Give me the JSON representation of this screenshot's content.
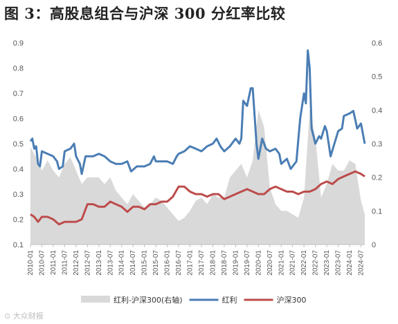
{
  "title": "图 3：高股息组合与沪深 300 分红率比较",
  "watermark": "⊙ 大众财报",
  "chart_data": {
    "type": "line",
    "x_tick_labels": [
      "2010-01",
      "2010-07",
      "2011-01",
      "2011-07",
      "2012-01",
      "2012-07",
      "2013-01",
      "2013-07",
      "2014-01",
      "2014-07",
      "2015-01",
      "2015-07",
      "2016-01",
      "2016-07",
      "2017-01",
      "2017-07",
      "2018-01",
      "2018-07",
      "2019-01",
      "2019-07",
      "2020-01",
      "2020-07",
      "2021-01",
      "2021-07",
      "2022-01",
      "2022-07",
      "2023-01",
      "2023-07",
      "2024-01",
      "2024-07"
    ],
    "x_range": [
      "2010-01",
      "2024-09"
    ],
    "y_left": {
      "min": 0.1,
      "max": 0.9,
      "ticks": [
        0.1,
        0.2,
        0.3,
        0.4,
        0.5,
        0.6,
        0.7,
        0.8,
        0.9
      ]
    },
    "y_right": {
      "min": 0,
      "max": 0.6,
      "ticks": [
        0,
        0.1,
        0.2,
        0.3,
        0.4,
        0.5,
        0.6
      ]
    },
    "grid": false,
    "legend_position": "bottom",
    "series": [
      {
        "name": "红利-沪深300(右轴)",
        "type": "area",
        "axis": "right",
        "color": "#d9d9d9",
        "points": [
          [
            "2010-01",
            0.29
          ],
          [
            "2010-04",
            0.26
          ],
          [
            "2010-07",
            0.22
          ],
          [
            "2010-10",
            0.25
          ],
          [
            "2011-01",
            0.22
          ],
          [
            "2011-04",
            0.2
          ],
          [
            "2011-07",
            0.24
          ],
          [
            "2011-10",
            0.26
          ],
          [
            "2012-01",
            0.22
          ],
          [
            "2012-04",
            0.18
          ],
          [
            "2012-07",
            0.2
          ],
          [
            "2012-10",
            0.2
          ],
          [
            "2013-01",
            0.2
          ],
          [
            "2013-04",
            0.18
          ],
          [
            "2013-07",
            0.2
          ],
          [
            "2013-10",
            0.16
          ],
          [
            "2014-01",
            0.14
          ],
          [
            "2014-04",
            0.12
          ],
          [
            "2014-07",
            0.15
          ],
          [
            "2014-10",
            0.13
          ],
          [
            "2015-01",
            0.11
          ],
          [
            "2015-04",
            0.12
          ],
          [
            "2015-07",
            0.14
          ],
          [
            "2015-10",
            0.13
          ],
          [
            "2016-01",
            0.11
          ],
          [
            "2016-04",
            0.09
          ],
          [
            "2016-07",
            0.07
          ],
          [
            "2016-10",
            0.08
          ],
          [
            "2017-01",
            0.1
          ],
          [
            "2017-04",
            0.13
          ],
          [
            "2017-07",
            0.14
          ],
          [
            "2017-10",
            0.12
          ],
          [
            "2018-01",
            0.15
          ],
          [
            "2018-04",
            0.14
          ],
          [
            "2018-07",
            0.14
          ],
          [
            "2018-10",
            0.2
          ],
          [
            "2019-01",
            0.22
          ],
          [
            "2019-04",
            0.24
          ],
          [
            "2019-07",
            0.2
          ],
          [
            "2019-10",
            0.25
          ],
          [
            "2020-01",
            0.4
          ],
          [
            "2020-04",
            0.35
          ],
          [
            "2020-07",
            0.17
          ],
          [
            "2020-10",
            0.12
          ],
          [
            "2021-01",
            0.1
          ],
          [
            "2021-04",
            0.1
          ],
          [
            "2021-07",
            0.09
          ],
          [
            "2021-10",
            0.08
          ],
          [
            "2022-01",
            0.14
          ],
          [
            "2022-04",
            0.4
          ],
          [
            "2022-07",
            0.32
          ],
          [
            "2022-10",
            0.14
          ],
          [
            "2023-01",
            0.18
          ],
          [
            "2023-04",
            0.24
          ],
          [
            "2023-07",
            0.22
          ],
          [
            "2023-10",
            0.22
          ],
          [
            "2024-01",
            0.25
          ],
          [
            "2024-04",
            0.24
          ],
          [
            "2024-07",
            0.13
          ],
          [
            "2024-09",
            0.09
          ]
        ]
      },
      {
        "name": "红利",
        "type": "line",
        "axis": "left",
        "color": "#4a7db4",
        "points": [
          [
            "2010-01",
            0.51
          ],
          [
            "2010-02",
            0.52
          ],
          [
            "2010-03",
            0.48
          ],
          [
            "2010-04",
            0.49
          ],
          [
            "2010-05",
            0.42
          ],
          [
            "2010-06",
            0.41
          ],
          [
            "2010-07",
            0.47
          ],
          [
            "2010-10",
            0.46
          ],
          [
            "2011-01",
            0.45
          ],
          [
            "2011-03",
            0.43
          ],
          [
            "2011-04",
            0.4
          ],
          [
            "2011-06",
            0.41
          ],
          [
            "2011-07",
            0.47
          ],
          [
            "2011-10",
            0.48
          ],
          [
            "2011-12",
            0.5
          ],
          [
            "2012-01",
            0.45
          ],
          [
            "2012-03",
            0.42
          ],
          [
            "2012-04",
            0.38
          ],
          [
            "2012-06",
            0.45
          ],
          [
            "2012-10",
            0.45
          ],
          [
            "2013-01",
            0.46
          ],
          [
            "2013-04",
            0.45
          ],
          [
            "2013-07",
            0.43
          ],
          [
            "2013-10",
            0.42
          ],
          [
            "2014-01",
            0.42
          ],
          [
            "2014-04",
            0.43
          ],
          [
            "2014-06",
            0.39
          ],
          [
            "2014-09",
            0.41
          ],
          [
            "2015-01",
            0.41
          ],
          [
            "2015-04",
            0.42
          ],
          [
            "2015-06",
            0.45
          ],
          [
            "2015-07",
            0.43
          ],
          [
            "2016-01",
            0.43
          ],
          [
            "2016-04",
            0.42
          ],
          [
            "2016-06",
            0.45
          ],
          [
            "2016-07",
            0.46
          ],
          [
            "2016-10",
            0.47
          ],
          [
            "2017-01",
            0.49
          ],
          [
            "2017-04",
            0.48
          ],
          [
            "2017-07",
            0.47
          ],
          [
            "2017-10",
            0.49
          ],
          [
            "2018-01",
            0.5
          ],
          [
            "2018-03",
            0.52
          ],
          [
            "2018-05",
            0.49
          ],
          [
            "2018-07",
            0.47
          ],
          [
            "2018-10",
            0.49
          ],
          [
            "2019-01",
            0.52
          ],
          [
            "2019-03",
            0.5
          ],
          [
            "2019-04",
            0.52
          ],
          [
            "2019-05",
            0.67
          ],
          [
            "2019-07",
            0.65
          ],
          [
            "2019-09",
            0.72
          ],
          [
            "2019-10",
            0.72
          ],
          [
            "2019-12",
            0.5
          ],
          [
            "2020-01",
            0.44
          ],
          [
            "2020-03",
            0.52
          ],
          [
            "2020-05",
            0.48
          ],
          [
            "2020-07",
            0.47
          ],
          [
            "2020-10",
            0.48
          ],
          [
            "2020-12",
            0.46
          ],
          [
            "2021-01",
            0.42
          ],
          [
            "2021-04",
            0.44
          ],
          [
            "2021-06",
            0.4
          ],
          [
            "2021-09",
            0.43
          ],
          [
            "2021-11",
            0.6
          ],
          [
            "2022-01",
            0.7
          ],
          [
            "2022-02",
            0.66
          ],
          [
            "2022-03",
            0.87
          ],
          [
            "2022-04",
            0.8
          ],
          [
            "2022-05",
            0.56
          ],
          [
            "2022-07",
            0.5
          ],
          [
            "2022-09",
            0.53
          ],
          [
            "2022-10",
            0.52
          ],
          [
            "2022-12",
            0.57
          ],
          [
            "2023-01",
            0.55
          ],
          [
            "2023-03",
            0.45
          ],
          [
            "2023-05",
            0.5
          ],
          [
            "2023-07",
            0.55
          ],
          [
            "2023-09",
            0.56
          ],
          [
            "2023-10",
            0.61
          ],
          [
            "2024-01",
            0.62
          ],
          [
            "2024-03",
            0.63
          ],
          [
            "2024-05",
            0.56
          ],
          [
            "2024-07",
            0.58
          ],
          [
            "2024-09",
            0.5
          ]
        ]
      },
      {
        "name": "沪深300",
        "type": "line",
        "axis": "left",
        "color": "#bd4b4b",
        "points": [
          [
            "2010-01",
            0.22
          ],
          [
            "2010-03",
            0.21
          ],
          [
            "2010-05",
            0.19
          ],
          [
            "2010-07",
            0.21
          ],
          [
            "2010-10",
            0.21
          ],
          [
            "2011-01",
            0.2
          ],
          [
            "2011-04",
            0.18
          ],
          [
            "2011-07",
            0.19
          ],
          [
            "2011-10",
            0.19
          ],
          [
            "2012-01",
            0.19
          ],
          [
            "2012-04",
            0.2
          ],
          [
            "2012-07",
            0.26
          ],
          [
            "2012-10",
            0.26
          ],
          [
            "2013-01",
            0.25
          ],
          [
            "2013-04",
            0.25
          ],
          [
            "2013-07",
            0.27
          ],
          [
            "2013-10",
            0.26
          ],
          [
            "2014-01",
            0.25
          ],
          [
            "2014-04",
            0.23
          ],
          [
            "2014-07",
            0.25
          ],
          [
            "2014-10",
            0.25
          ],
          [
            "2015-01",
            0.24
          ],
          [
            "2015-04",
            0.26
          ],
          [
            "2015-07",
            0.26
          ],
          [
            "2015-10",
            0.27
          ],
          [
            "2016-01",
            0.27
          ],
          [
            "2016-04",
            0.29
          ],
          [
            "2016-07",
            0.33
          ],
          [
            "2016-10",
            0.33
          ],
          [
            "2017-01",
            0.31
          ],
          [
            "2017-04",
            0.3
          ],
          [
            "2017-07",
            0.3
          ],
          [
            "2017-10",
            0.29
          ],
          [
            "2018-01",
            0.3
          ],
          [
            "2018-04",
            0.3
          ],
          [
            "2018-07",
            0.28
          ],
          [
            "2018-10",
            0.29
          ],
          [
            "2019-01",
            0.3
          ],
          [
            "2019-04",
            0.31
          ],
          [
            "2019-07",
            0.32
          ],
          [
            "2019-10",
            0.31
          ],
          [
            "2020-01",
            0.3
          ],
          [
            "2020-04",
            0.3
          ],
          [
            "2020-07",
            0.32
          ],
          [
            "2020-10",
            0.33
          ],
          [
            "2021-01",
            0.32
          ],
          [
            "2021-04",
            0.31
          ],
          [
            "2021-07",
            0.31
          ],
          [
            "2021-10",
            0.3
          ],
          [
            "2022-01",
            0.31
          ],
          [
            "2022-04",
            0.31
          ],
          [
            "2022-07",
            0.32
          ],
          [
            "2022-10",
            0.34
          ],
          [
            "2023-01",
            0.35
          ],
          [
            "2023-04",
            0.34
          ],
          [
            "2023-07",
            0.36
          ],
          [
            "2023-10",
            0.37
          ],
          [
            "2024-01",
            0.38
          ],
          [
            "2024-04",
            0.39
          ],
          [
            "2024-07",
            0.38
          ],
          [
            "2024-09",
            0.37
          ]
        ]
      }
    ]
  }
}
